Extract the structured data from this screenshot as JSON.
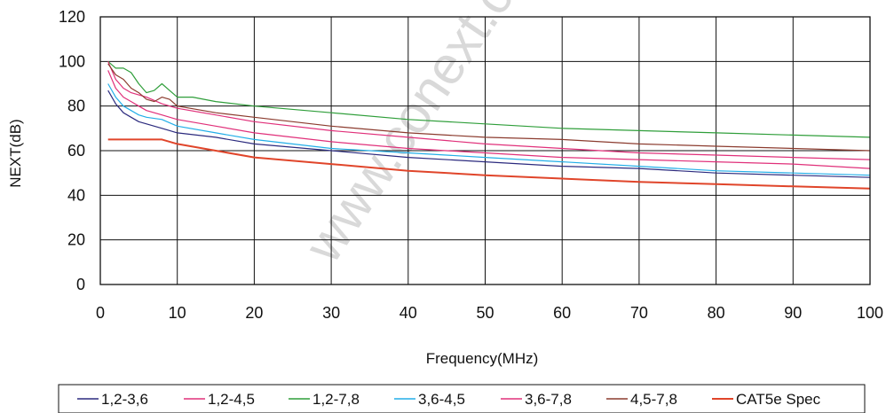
{
  "watermark": "www.conext.c",
  "chart_data": {
    "type": "line",
    "xlabel": "Frequency(MHz)",
    "ylabel": "NEXT(dB)",
    "xlim": [
      0,
      100
    ],
    "ylim": [
      0,
      120
    ],
    "xticks": [
      0,
      10,
      20,
      30,
      40,
      50,
      60,
      70,
      80,
      90,
      100
    ],
    "yticks": [
      0,
      20,
      40,
      60,
      80,
      100,
      120
    ],
    "grid": true,
    "legend_position": "bottom",
    "series": [
      {
        "name": "1,2-3,6",
        "color": "#2b2a7e",
        "x": [
          1,
          2,
          3,
          4,
          5,
          6,
          8,
          10,
          15,
          20,
          30,
          40,
          50,
          60,
          70,
          80,
          90,
          100
        ],
        "y": [
          87,
          81,
          77,
          75,
          73,
          72,
          70,
          68,
          66,
          63,
          60,
          57,
          55,
          53,
          52,
          50,
          49,
          48
        ]
      },
      {
        "name": "1,2-4,5",
        "color": "#e0307a",
        "x": [
          1,
          2,
          3,
          4,
          5,
          6,
          8,
          10,
          15,
          20,
          30,
          40,
          50,
          60,
          70,
          80,
          90,
          100
        ],
        "y": [
          96,
          88,
          84,
          82,
          80,
          78,
          76,
          74,
          71,
          68,
          64,
          61,
          59,
          57,
          56,
          55,
          54,
          52
        ]
      },
      {
        "name": "1,2-7,8",
        "color": "#2f9e3a",
        "x": [
          1,
          2,
          3,
          4,
          5,
          6,
          7,
          8,
          9,
          10,
          12,
          15,
          20,
          30,
          40,
          50,
          60,
          70,
          80,
          90,
          100
        ],
        "y": [
          100,
          97,
          97,
          95,
          90,
          86,
          87,
          90,
          87,
          84,
          84,
          82,
          80,
          77,
          74,
          72,
          70,
          69,
          68,
          67,
          66
        ]
      },
      {
        "name": "3,6-4,5",
        "color": "#22aee8",
        "x": [
          1,
          2,
          3,
          4,
          5,
          6,
          8,
          10,
          15,
          20,
          30,
          40,
          50,
          60,
          70,
          80,
          90,
          100
        ],
        "y": [
          90,
          84,
          80,
          78,
          76,
          75,
          74,
          71,
          68,
          65,
          61,
          59,
          57,
          55,
          53,
          51,
          50,
          49
        ]
      },
      {
        "name": "3,6-7,8",
        "color": "#e0307a",
        "x": [
          1,
          2,
          3,
          4,
          5,
          6,
          8,
          10,
          15,
          20,
          30,
          40,
          50,
          60,
          70,
          80,
          90,
          100
        ],
        "y": [
          100,
          92,
          88,
          86,
          85,
          84,
          81,
          79,
          76,
          73,
          69,
          66,
          63,
          61,
          59,
          58,
          57,
          56
        ]
      },
      {
        "name": "4,5-7,8",
        "color": "#8b3b2e",
        "x": [
          1,
          2,
          3,
          4,
          5,
          6,
          7,
          8,
          9,
          10,
          15,
          20,
          30,
          40,
          50,
          60,
          70,
          80,
          90,
          100
        ],
        "y": [
          99,
          94,
          92,
          88,
          86,
          83,
          82,
          84,
          83,
          80,
          77,
          75,
          71,
          68,
          66,
          65,
          63,
          62,
          61,
          60
        ]
      },
      {
        "name": "CAT5e Spec",
        "color": "#e0452a",
        "x": [
          1,
          2,
          4,
          6,
          8,
          10,
          15,
          20,
          30,
          40,
          50,
          60,
          70,
          80,
          90,
          100
        ],
        "y": [
          65,
          65,
          65,
          65,
          65,
          63,
          60,
          57,
          54,
          51,
          49,
          47.5,
          46,
          45,
          44,
          43
        ]
      }
    ]
  }
}
